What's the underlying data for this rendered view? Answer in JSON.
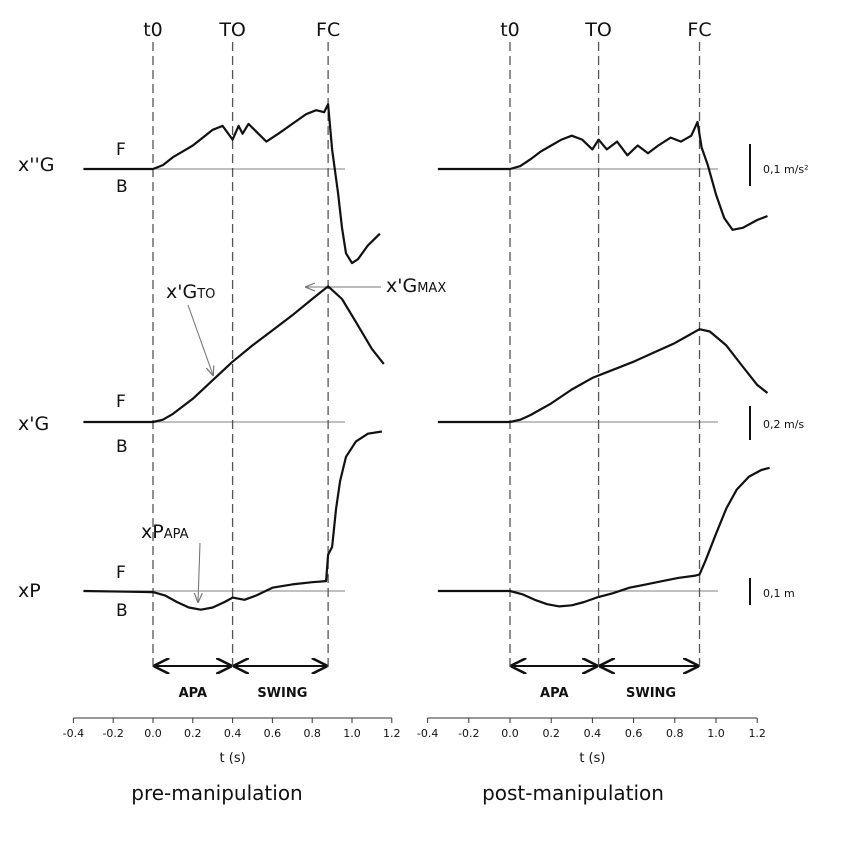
{
  "rows": {
    "acc_label": "x''G",
    "vel_label": "x'G",
    "pos_label": "xP",
    "forward": "F",
    "backward": "B"
  },
  "scales": {
    "acc": "0,1 m/s²",
    "vel": "0,2 m/s",
    "pos": "0,1 m"
  },
  "annotations": {
    "xg_to": {
      "main": "x'G",
      "sub": "TO"
    },
    "xg_max": {
      "main": "x'G",
      "sub": "MAX"
    },
    "xp_apa": {
      "main": "xP",
      "sub": "APA"
    }
  },
  "phase_labels": {
    "apa": "APA",
    "swing": "SWING"
  },
  "panels": [
    {
      "caption": "pre-manipulation",
      "events": [
        {
          "label": "t0",
          "t": 0.0
        },
        {
          "label": "TO",
          "t": 0.4
        },
        {
          "label": "FC",
          "t": 0.88
        }
      ]
    },
    {
      "caption": "post-manipulation",
      "events": [
        {
          "label": "t0",
          "t": 0.0
        },
        {
          "label": "TO",
          "t": 0.43
        },
        {
          "label": "FC",
          "t": 0.92
        }
      ]
    }
  ],
  "chart_data": [
    {
      "type": "line",
      "title": "pre-manipulation",
      "xlabel": "t (s)",
      "x_ticks": [
        "-0.4",
        "-0.2",
        "0.0",
        "0.2",
        "0.4",
        "0.6",
        "0.8",
        "1.0",
        "1.2"
      ],
      "xlim": [
        -0.4,
        1.2
      ],
      "series": [
        {
          "name": "x''G",
          "points": [
            [
              -0.35,
              0
            ],
            [
              0.0,
              0
            ],
            [
              0.05,
              0.04
            ],
            [
              0.1,
              0.12
            ],
            [
              0.15,
              0.18
            ],
            [
              0.2,
              0.24
            ],
            [
              0.25,
              0.32
            ],
            [
              0.3,
              0.4
            ],
            [
              0.35,
              0.44
            ],
            [
              0.4,
              0.3
            ],
            [
              0.43,
              0.44
            ],
            [
              0.45,
              0.36
            ],
            [
              0.48,
              0.46
            ],
            [
              0.52,
              0.38
            ],
            [
              0.57,
              0.28
            ],
            [
              0.63,
              0.36
            ],
            [
              0.7,
              0.46
            ],
            [
              0.77,
              0.56
            ],
            [
              0.82,
              0.6
            ],
            [
              0.86,
              0.58
            ],
            [
              0.88,
              0.66
            ],
            [
              0.9,
              0.2
            ],
            [
              0.93,
              -0.25
            ],
            [
              0.95,
              -0.6
            ],
            [
              0.97,
              -0.86
            ],
            [
              1.0,
              -0.96
            ],
            [
              1.03,
              -0.92
            ],
            [
              1.08,
              -0.78
            ],
            [
              1.14,
              -0.66
            ]
          ]
        },
        {
          "name": "x'G",
          "points": [
            [
              -0.35,
              0
            ],
            [
              0.0,
              0
            ],
            [
              0.05,
              0.02
            ],
            [
              0.1,
              0.07
            ],
            [
              0.2,
              0.2
            ],
            [
              0.3,
              0.36
            ],
            [
              0.4,
              0.52
            ],
            [
              0.5,
              0.66
            ],
            [
              0.6,
              0.79
            ],
            [
              0.7,
              0.92
            ],
            [
              0.8,
              1.06
            ],
            [
              0.88,
              1.17
            ],
            [
              0.95,
              1.06
            ],
            [
              1.02,
              0.86
            ],
            [
              1.1,
              0.63
            ],
            [
              1.16,
              0.5
            ]
          ]
        },
        {
          "name": "xP",
          "points": [
            [
              -0.35,
              0
            ],
            [
              0.0,
              -0.01
            ],
            [
              0.06,
              -0.04
            ],
            [
              0.12,
              -0.1
            ],
            [
              0.18,
              -0.15
            ],
            [
              0.24,
              -0.17
            ],
            [
              0.3,
              -0.15
            ],
            [
              0.36,
              -0.1
            ],
            [
              0.4,
              -0.06
            ],
            [
              0.46,
              -0.08
            ],
            [
              0.52,
              -0.04
            ],
            [
              0.6,
              0.03
            ],
            [
              0.7,
              0.06
            ],
            [
              0.8,
              0.08
            ],
            [
              0.87,
              0.09
            ],
            [
              0.88,
              0.33
            ],
            [
              0.9,
              0.4
            ],
            [
              0.92,
              0.75
            ],
            [
              0.94,
              1.0
            ],
            [
              0.97,
              1.22
            ],
            [
              1.02,
              1.36
            ],
            [
              1.08,
              1.43
            ],
            [
              1.15,
              1.45
            ]
          ]
        }
      ]
    },
    {
      "type": "line",
      "title": "post-manipulation",
      "xlabel": "t (s)",
      "x_ticks": [
        "-0.4",
        "-0.2",
        "0.0",
        "0.2",
        "0.4",
        "0.6",
        "0.8",
        "1.0",
        "1.2"
      ],
      "xlim": [
        -0.4,
        1.2
      ],
      "series": [
        {
          "name": "x''G",
          "points": [
            [
              -0.35,
              0
            ],
            [
              0.0,
              0
            ],
            [
              0.05,
              0.03
            ],
            [
              0.1,
              0.1
            ],
            [
              0.15,
              0.18
            ],
            [
              0.2,
              0.24
            ],
            [
              0.25,
              0.3
            ],
            [
              0.3,
              0.34
            ],
            [
              0.35,
              0.3
            ],
            [
              0.4,
              0.2
            ],
            [
              0.43,
              0.3
            ],
            [
              0.47,
              0.2
            ],
            [
              0.52,
              0.28
            ],
            [
              0.57,
              0.14
            ],
            [
              0.62,
              0.24
            ],
            [
              0.67,
              0.16
            ],
            [
              0.72,
              0.24
            ],
            [
              0.78,
              0.32
            ],
            [
              0.83,
              0.28
            ],
            [
              0.88,
              0.34
            ],
            [
              0.91,
              0.48
            ],
            [
              0.93,
              0.22
            ],
            [
              0.96,
              0.04
            ],
            [
              1.0,
              -0.26
            ],
            [
              1.04,
              -0.5
            ],
            [
              1.08,
              -0.62
            ],
            [
              1.13,
              -0.6
            ],
            [
              1.2,
              -0.52
            ],
            [
              1.25,
              -0.48
            ]
          ]
        },
        {
          "name": "x'G",
          "points": [
            [
              -0.35,
              0
            ],
            [
              0.0,
              0
            ],
            [
              0.05,
              0.02
            ],
            [
              0.1,
              0.06
            ],
            [
              0.2,
              0.16
            ],
            [
              0.3,
              0.28
            ],
            [
              0.4,
              0.38
            ],
            [
              0.5,
              0.45
            ],
            [
              0.6,
              0.52
            ],
            [
              0.7,
              0.6
            ],
            [
              0.8,
              0.68
            ],
            [
              0.87,
              0.75
            ],
            [
              0.92,
              0.8
            ],
            [
              0.97,
              0.78
            ],
            [
              1.05,
              0.66
            ],
            [
              1.12,
              0.5
            ],
            [
              1.2,
              0.32
            ],
            [
              1.25,
              0.25
            ]
          ]
        },
        {
          "name": "xP",
          "points": [
            [
              -0.35,
              0
            ],
            [
              0.0,
              0
            ],
            [
              0.06,
              -0.03
            ],
            [
              0.12,
              -0.08
            ],
            [
              0.18,
              -0.12
            ],
            [
              0.24,
              -0.14
            ],
            [
              0.3,
              -0.13
            ],
            [
              0.36,
              -0.1
            ],
            [
              0.42,
              -0.06
            ],
            [
              0.5,
              -0.02
            ],
            [
              0.58,
              0.03
            ],
            [
              0.66,
              0.06
            ],
            [
              0.74,
              0.09
            ],
            [
              0.82,
              0.12
            ],
            [
              0.9,
              0.14
            ],
            [
              0.92,
              0.15
            ],
            [
              0.95,
              0.28
            ],
            [
              1.0,
              0.52
            ],
            [
              1.05,
              0.75
            ],
            [
              1.1,
              0.92
            ],
            [
              1.16,
              1.04
            ],
            [
              1.22,
              1.1
            ],
            [
              1.26,
              1.12
            ]
          ]
        }
      ]
    }
  ]
}
